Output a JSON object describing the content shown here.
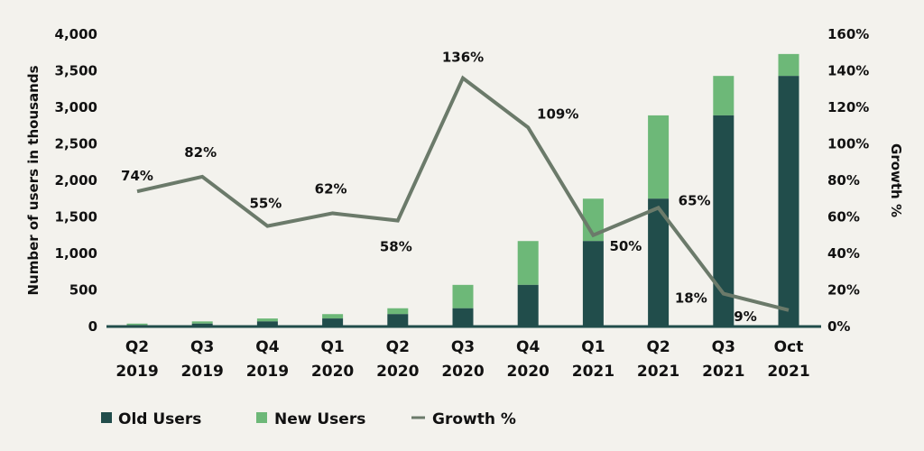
{
  "chart_data": {
    "type": "bar",
    "subtype": "stacked-bar-with-line",
    "title": "",
    "categories": [
      [
        "Q2",
        "2019"
      ],
      [
        "Q3",
        "2019"
      ],
      [
        "Q4",
        "2019"
      ],
      [
        "Q1",
        "2020"
      ],
      [
        "Q2",
        "2020"
      ],
      [
        "Q3",
        "2020"
      ],
      [
        "Q4",
        "2020"
      ],
      [
        "Q1",
        "2021"
      ],
      [
        "Q2",
        "2021"
      ],
      [
        "Q3",
        "2021"
      ],
      [
        "Oct",
        "2021"
      ]
    ],
    "series": [
      {
        "name": "Old Users",
        "type": "bar",
        "axis": "left",
        "color": "#214d4b",
        "values": [
          20,
          40,
          70,
          110,
          170,
          250,
          570,
          1170,
          1750,
          2890,
          3430
        ]
      },
      {
        "name": "New Users",
        "type": "bar",
        "axis": "left",
        "color": "#6db878",
        "values": [
          20,
          30,
          40,
          60,
          80,
          320,
          600,
          580,
          1140,
          540,
          300
        ]
      },
      {
        "name": "Growth %",
        "type": "line",
        "axis": "right",
        "color": "#6b7a6a",
        "values": [
          74,
          82,
          55,
          62,
          58,
          136,
          109,
          50,
          65,
          18,
          9
        ],
        "labels": [
          "74%",
          "82%",
          "55%",
          "62%",
          "58%",
          "136%",
          "109%",
          "50%",
          "65%",
          "18%",
          "9%"
        ]
      }
    ],
    "ylabel": "Number of users in thousands",
    "y2label": "Growth %",
    "ylim": [
      0,
      4000
    ],
    "y2lim": [
      0,
      160
    ],
    "yticks": [
      "0",
      "500",
      "1,000",
      "1,500",
      "2,000",
      "2,500",
      "3,000",
      "3,500",
      "4,000"
    ],
    "y2ticks": [
      "0%",
      "20%",
      "40%",
      "60%",
      "80%",
      "100%",
      "120%",
      "140%",
      "160%"
    ],
    "grid": false,
    "legend_position": "bottom-left",
    "legend": [
      "Old Users",
      "New Users",
      "Growth %"
    ]
  }
}
